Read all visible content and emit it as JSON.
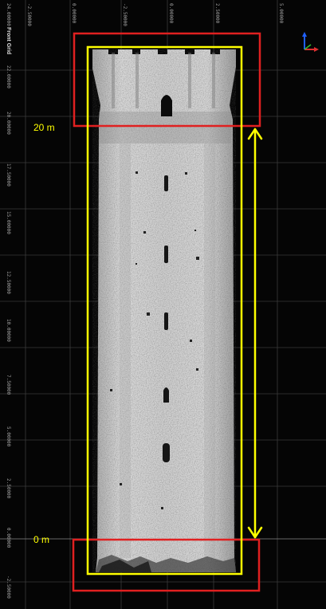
{
  "viewer": {
    "view_label": "Front Grid",
    "top_ruler": [
      "-2.50000",
      "0.00000",
      "-2.50000",
      "0.00000",
      "2.50000",
      "5.00000"
    ],
    "left_ruler": [
      "24.00000",
      "22.00000",
      "20.00000",
      "17.50000",
      "15.00000",
      "12.50000",
      "10.00000",
      "7.50000",
      "5.00000",
      "2.50000",
      "0.00000",
      "-2.50000"
    ]
  },
  "annotations": {
    "label_top": "20 m",
    "label_bottom": "0 m"
  },
  "colors": {
    "background": "#050505",
    "grid": "#3a3a3a",
    "box": "#e02020",
    "outline": "#ffff00",
    "tower": "#c8c8c8"
  },
  "icons": [
    "axis-triad-icon",
    "double-arrow-icon"
  ]
}
